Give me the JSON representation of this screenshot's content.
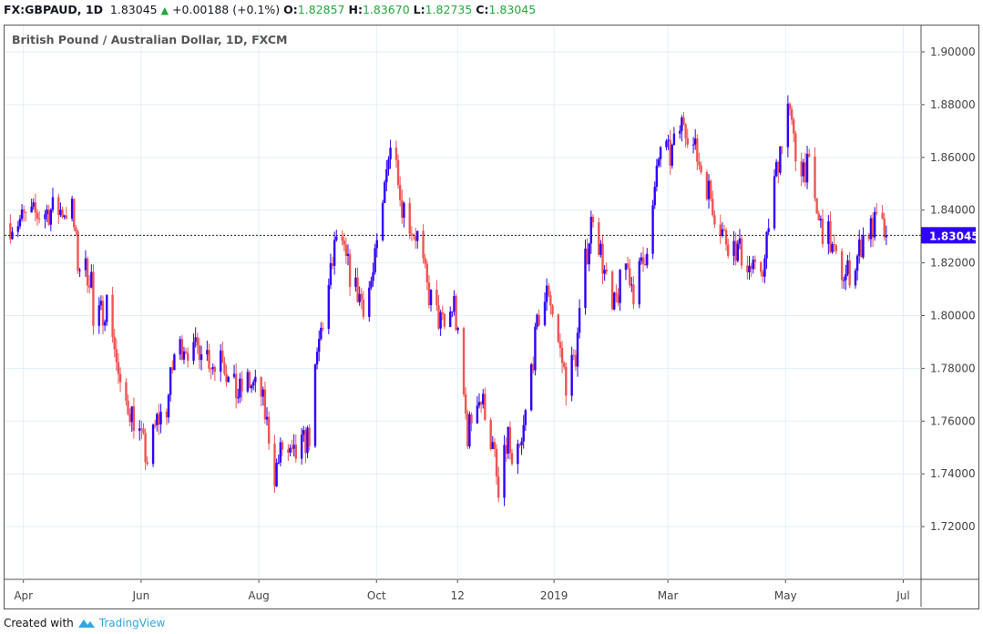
{
  "header": {
    "symbol": "FX:GBPAUD, 1D",
    "last": "1.83045",
    "change": "+0.00188 (+0.1%)",
    "open_label": "O:",
    "open": "1.82857",
    "high_label": "H:",
    "high": "1.83670",
    "low_label": "L:",
    "low": "1.82735",
    "close_label": "C:",
    "close": "1.83045"
  },
  "footer": {
    "created_with": "Created with",
    "brand": "TradingView"
  },
  "colors": {
    "up": "#2f00ff",
    "down": "#f05454",
    "grid": "#e3eef7",
    "last_price": "#2f00ff"
  },
  "chart_data": {
    "type": "candlestick",
    "title": "British Pound / Australian Dollar, 1D, FXCM",
    "ylim": [
      1.7,
      1.91
    ],
    "xlim": [
      "2018-03-26",
      "2019-07-14"
    ],
    "grid": true,
    "y_ticks": [
      "1.90000",
      "1.88000",
      "1.86000",
      "1.84000",
      "1.82000",
      "1.80000",
      "1.78000",
      "1.76000",
      "1.74000",
      "1.72000"
    ],
    "x_ticks": [
      {
        "label": "Apr",
        "date": "2018-04-01"
      },
      {
        "label": "Jun",
        "date": "2018-06-01"
      },
      {
        "label": "Aug",
        "date": "2018-08-01"
      },
      {
        "label": "Oct",
        "date": "2018-10-01"
      },
      {
        "label": "12",
        "date": "2018-11-12"
      },
      {
        "label": "2019",
        "date": "2019-01-01"
      },
      {
        "label": "Mar",
        "date": "2019-03-01"
      },
      {
        "label": "May",
        "date": "2019-05-01"
      },
      {
        "label": "Jul",
        "date": "2019-07-01"
      }
    ],
    "last_price": "1.83045",
    "close_path": [
      [
        "2018-03-29",
        1.835
      ],
      [
        "2018-04-19",
        1.84
      ],
      [
        "2018-04-30",
        1.84
      ],
      [
        "2018-05-03",
        1.82
      ],
      [
        "2018-05-10",
        1.815
      ],
      [
        "2018-05-11",
        1.795
      ],
      [
        "2018-05-18",
        1.805
      ],
      [
        "2018-05-21",
        1.795
      ],
      [
        "2018-05-25",
        1.77
      ],
      [
        "2018-05-30",
        1.765
      ],
      [
        "2018-06-04",
        1.755
      ],
      [
        "2018-06-08",
        1.745
      ],
      [
        "2018-06-13",
        1.76
      ],
      [
        "2018-06-18",
        1.765
      ],
      [
        "2018-06-22",
        1.785
      ],
      [
        "2018-06-27",
        1.79
      ],
      [
        "2018-07-02",
        1.785
      ],
      [
        "2018-07-06",
        1.79
      ],
      [
        "2018-07-13",
        1.78
      ],
      [
        "2018-07-16",
        1.79
      ],
      [
        "2018-07-20",
        1.775
      ],
      [
        "2018-07-25",
        1.77
      ],
      [
        "2018-07-30",
        1.775
      ],
      [
        "2018-08-06",
        1.77
      ],
      [
        "2018-08-10",
        1.755
      ],
      [
        "2018-08-13",
        1.74
      ],
      [
        "2018-08-17",
        1.75
      ],
      [
        "2018-08-22",
        1.745
      ],
      [
        "2018-08-27",
        1.75
      ],
      [
        "2018-08-31",
        1.755
      ],
      [
        "2018-09-05",
        1.79
      ],
      [
        "2018-09-10",
        1.81
      ],
      [
        "2018-09-14",
        1.83
      ],
      [
        "2018-09-19",
        1.82
      ],
      [
        "2018-09-24",
        1.81
      ],
      [
        "2018-09-28",
        1.805
      ],
      [
        "2018-10-03",
        1.815
      ],
      [
        "2018-10-08",
        1.84
      ],
      [
        "2018-10-10",
        1.86
      ],
      [
        "2018-10-15",
        1.865
      ],
      [
        "2018-10-17",
        1.845
      ],
      [
        "2018-10-22",
        1.835
      ],
      [
        "2018-10-26",
        1.83
      ],
      [
        "2018-10-31",
        1.81
      ],
      [
        "2018-11-05",
        1.8
      ],
      [
        "2018-11-09",
        1.795
      ],
      [
        "2018-11-14",
        1.805
      ],
      [
        "2018-11-16",
        1.79
      ],
      [
        "2018-11-21",
        1.755
      ],
      [
        "2018-11-26",
        1.77
      ],
      [
        "2018-11-30",
        1.765
      ],
      [
        "2018-12-05",
        1.745
      ],
      [
        "2018-12-07",
        1.73
      ],
      [
        "2018-12-12",
        1.755
      ],
      [
        "2018-12-14",
        1.74
      ],
      [
        "2018-12-19",
        1.75
      ],
      [
        "2018-12-24",
        1.78
      ],
      [
        "2018-12-28",
        1.8
      ],
      [
        "2019-01-02",
        1.81
      ],
      [
        "2019-01-07",
        1.79
      ],
      [
        "2019-01-11",
        1.775
      ],
      [
        "2019-01-16",
        1.785
      ],
      [
        "2019-01-21",
        1.82
      ],
      [
        "2019-01-25",
        1.84
      ],
      [
        "2019-01-30",
        1.82
      ],
      [
        "2019-02-04",
        1.8
      ],
      [
        "2019-02-11",
        1.82
      ],
      [
        "2019-02-15",
        1.81
      ],
      [
        "2019-02-20",
        1.82
      ],
      [
        "2019-02-25",
        1.84
      ],
      [
        "2019-03-01",
        1.865
      ],
      [
        "2019-03-06",
        1.86
      ],
      [
        "2019-03-13",
        1.875
      ],
      [
        "2019-03-20",
        1.86
      ],
      [
        "2019-03-25",
        1.85
      ],
      [
        "2019-03-29",
        1.84
      ],
      [
        "2019-04-03",
        1.83
      ],
      [
        "2019-04-10",
        1.825
      ],
      [
        "2019-04-15",
        1.82
      ],
      [
        "2019-04-19",
        1.815
      ],
      [
        "2019-04-24",
        1.82
      ],
      [
        "2019-04-26",
        1.835
      ],
      [
        "2019-05-01",
        1.86
      ],
      [
        "2019-05-06",
        1.88
      ],
      [
        "2019-05-10",
        1.86
      ],
      [
        "2019-05-17",
        1.855
      ],
      [
        "2019-05-22",
        1.835
      ],
      [
        "2019-05-27",
        1.83
      ],
      [
        "2019-05-31",
        1.82
      ],
      [
        "2019-06-05",
        1.815
      ],
      [
        "2019-06-10",
        1.82
      ],
      [
        "2019-06-14",
        1.83
      ],
      [
        "2019-06-21",
        1.835
      ],
      [
        "2019-06-26",
        1.83045
      ]
    ]
  }
}
